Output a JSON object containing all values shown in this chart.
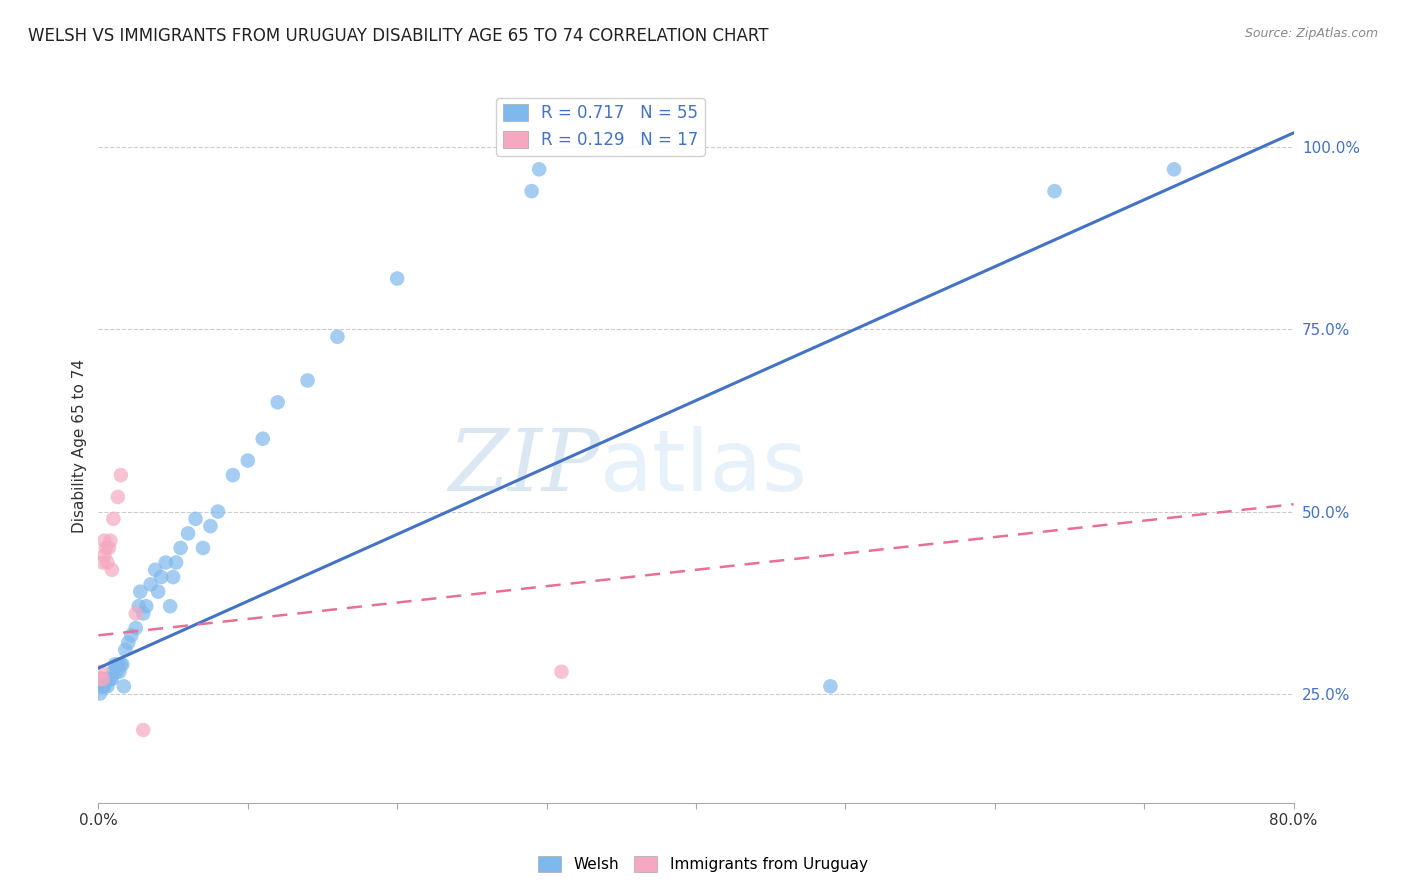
{
  "title": "WELSH VS IMMIGRANTS FROM URUGUAY DISABILITY AGE 65 TO 74 CORRELATION CHART",
  "source": "Source: ZipAtlas.com",
  "ylabel": "Disability Age 65 to 74",
  "x_min": 0.0,
  "x_max": 0.8,
  "y_min": 0.1,
  "y_max": 1.08,
  "x_ticks": [
    0.0,
    0.1,
    0.2,
    0.3,
    0.4,
    0.5,
    0.6,
    0.7,
    0.8
  ],
  "y_ticks": [
    0.25,
    0.5,
    0.75,
    1.0
  ],
  "y_tick_labels": [
    "25.0%",
    "50.0%",
    "75.0%",
    "100.0%"
  ],
  "legend_labels": [
    "Welsh",
    "Immigrants from Uruguay"
  ],
  "welsh_R": 0.717,
  "welsh_N": 55,
  "uruguay_R": 0.129,
  "uruguay_N": 17,
  "welsh_color": "#7EB8EC",
  "uruguay_color": "#F5A8C0",
  "welsh_line_color": "#4472C4",
  "uruguay_line_color": "#E87090",
  "grid_color": "#CCCCCC",
  "watermark_zip": "ZIP",
  "watermark_atlas": "atlas",
  "welsh_line_x": [
    0.0,
    0.8
  ],
  "welsh_line_y": [
    0.285,
    1.02
  ],
  "uruguay_line_x": [
    0.0,
    0.8
  ],
  "uruguay_line_y": [
    0.33,
    0.51
  ],
  "welsh_scatter_x": [
    0.001,
    0.001,
    0.002,
    0.002,
    0.003,
    0.003,
    0.004,
    0.004,
    0.005,
    0.006,
    0.007,
    0.008,
    0.009,
    0.01,
    0.011,
    0.012,
    0.013,
    0.014,
    0.015,
    0.016,
    0.017,
    0.018,
    0.02,
    0.022,
    0.025,
    0.027,
    0.028,
    0.03,
    0.032,
    0.035,
    0.038,
    0.04,
    0.042,
    0.045,
    0.048,
    0.05,
    0.052,
    0.055,
    0.06,
    0.065,
    0.07,
    0.075,
    0.08,
    0.09,
    0.1,
    0.11,
    0.12,
    0.14,
    0.16,
    0.2,
    0.29,
    0.295,
    0.49,
    0.64,
    0.72
  ],
  "welsh_scatter_y": [
    0.27,
    0.25,
    0.26,
    0.27,
    0.26,
    0.27,
    0.26,
    0.27,
    0.27,
    0.26,
    0.27,
    0.27,
    0.27,
    0.28,
    0.29,
    0.28,
    0.29,
    0.28,
    0.29,
    0.29,
    0.26,
    0.31,
    0.32,
    0.33,
    0.34,
    0.37,
    0.39,
    0.36,
    0.37,
    0.4,
    0.42,
    0.39,
    0.41,
    0.43,
    0.37,
    0.41,
    0.43,
    0.45,
    0.47,
    0.49,
    0.45,
    0.48,
    0.5,
    0.55,
    0.57,
    0.6,
    0.65,
    0.68,
    0.74,
    0.82,
    0.94,
    0.97,
    0.26,
    0.94,
    0.97
  ],
  "uruguay_scatter_x": [
    0.001,
    0.002,
    0.003,
    0.003,
    0.004,
    0.004,
    0.005,
    0.006,
    0.007,
    0.008,
    0.009,
    0.01,
    0.013,
    0.015,
    0.025,
    0.03,
    0.31
  ],
  "uruguay_scatter_y": [
    0.27,
    0.28,
    0.27,
    0.43,
    0.44,
    0.46,
    0.45,
    0.43,
    0.45,
    0.46,
    0.42,
    0.49,
    0.52,
    0.55,
    0.36,
    0.2,
    0.28
  ]
}
